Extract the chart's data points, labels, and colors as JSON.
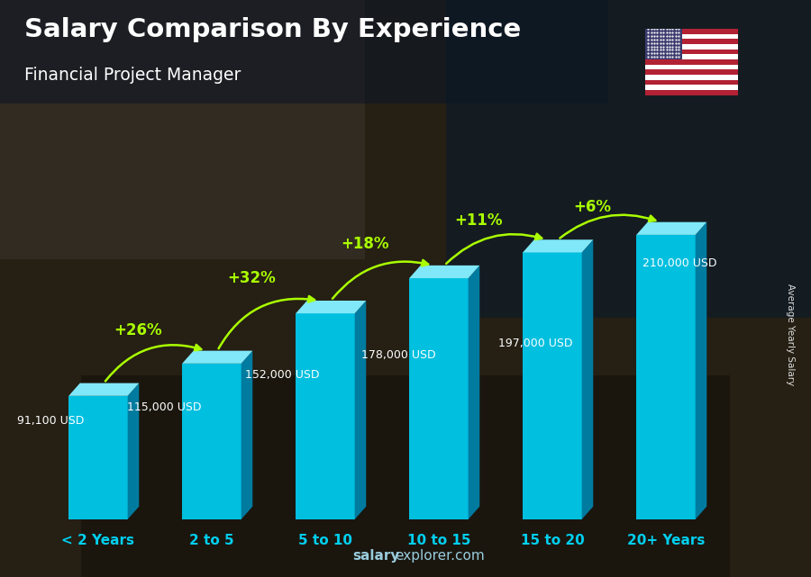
{
  "title": "Salary Comparison By Experience",
  "subtitle": "Financial Project Manager",
  "categories": [
    "< 2 Years",
    "2 to 5",
    "5 to 10",
    "10 to 15",
    "15 to 20",
    "20+ Years"
  ],
  "values": [
    91100,
    115000,
    152000,
    178000,
    197000,
    210000
  ],
  "labels": [
    "91,100 USD",
    "115,000 USD",
    "152,000 USD",
    "178,000 USD",
    "197,000 USD",
    "210,000 USD"
  ],
  "pct_changes": [
    "+26%",
    "+32%",
    "+18%",
    "+11%",
    "+6%"
  ],
  "bar_color_face": "#00BFDF",
  "bar_color_right": "#007BA0",
  "bar_color_top": "#80E8F8",
  "bar_width": 0.52,
  "bg_color": "#2a2a1e",
  "title_color": "#ffffff",
  "subtitle_color": "#ffffff",
  "label_color": "#ffffff",
  "pct_color": "#aaff00",
  "tick_color": "#00CFEF",
  "ylabel_text": "Average Yearly Salary",
  "watermark_bold": "salary",
  "watermark_normal": "explorer.com",
  "watermark_color": "#99ccdd"
}
